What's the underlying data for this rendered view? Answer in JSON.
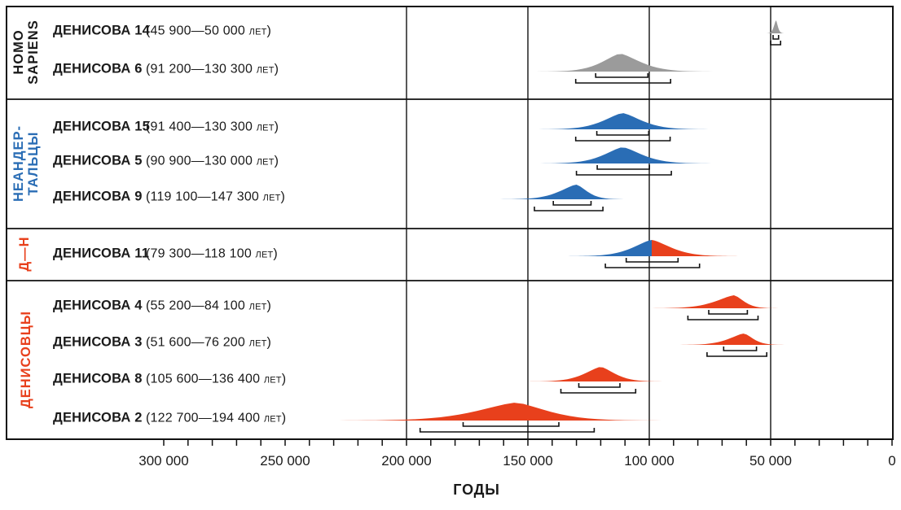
{
  "figure": {
    "xlabel": "ГОДЫ"
  },
  "colors": {
    "sapiens_gray": "#9b9b9b",
    "neanderthal_blue": "#2a6db5",
    "denisovan_red": "#e8401c",
    "line_black": "#111111",
    "text": "#1a1a1a"
  },
  "chart_data": {
    "type": "area",
    "title": "",
    "xlabel": "ГОДЫ",
    "x_axis": {
      "unit": "лет",
      "direction": "values decrease to the right",
      "xlim": [
        330000,
        0
      ],
      "tick_values": [
        300000,
        250000,
        200000,
        150000,
        100000,
        50000,
        0
      ],
      "tick_labels": [
        "300 000",
        "250 000",
        "200 000",
        "150 000",
        "100 000",
        "50 000",
        "0"
      ],
      "minor_tick_step": 10000,
      "gridlines_at": [
        200000,
        150000,
        100000,
        50000
      ],
      "grid": "on"
    },
    "groups": [
      {
        "label": "HOMO\nSAPIENS",
        "label_color": "#1a1a1a",
        "rows": [
          {
            "name": "ДЕНИСОВА 14",
            "range_label": "(45 900—50 000 лет)",
            "interval_years": [
              45900,
              50000
            ],
            "peak_years": 47800,
            "color": "#9b9b9b"
          },
          {
            "name": "ДЕНИСОВА 6",
            "range_label": "(91 200—130 300 лет)",
            "interval_years": [
              91200,
              130300
            ],
            "peak_years": 112000,
            "color": "#9b9b9b"
          }
        ]
      },
      {
        "label": "НЕАНДЕР-\nТАЛЬЦЫ",
        "label_color": "#2a6db5",
        "rows": [
          {
            "name": "ДЕНИСОВА 15",
            "range_label": "(91 400—130 300 лет)",
            "interval_years": [
              91400,
              130300
            ],
            "peak_years": 111000,
            "color": "#2a6db5"
          },
          {
            "name": "ДЕНИСОВА 5",
            "range_label": "(90 900—130 000 лет)",
            "interval_years": [
              90900,
              130000
            ],
            "peak_years": 111000,
            "color": "#2a6db5"
          },
          {
            "name": "ДЕНИСОВА 9",
            "range_label": "(119 100—147 300 лет)",
            "interval_years": [
              119100,
              147300
            ],
            "peak_years": 130000,
            "color": "#2a6db5"
          }
        ]
      },
      {
        "label": "Д—Н",
        "label_color": "#e8401c",
        "rows": [
          {
            "name": "ДЕНИСОВА 11",
            "range_label": "(79 300—118 100 лет)",
            "interval_years": [
              79300,
              118100
            ],
            "peak_years": 99000,
            "color": [
              "#2a6db5",
              "#e8401c"
            ]
          }
        ]
      },
      {
        "label": "ДЕНИСОВЦЫ",
        "label_color": "#e8401c",
        "rows": [
          {
            "name": "ДЕНИСОВА 4",
            "range_label": "(55 200—84 100 лет)",
            "interval_years": [
              55200,
              84100
            ],
            "peak_years": 65000,
            "color": "#e8401c"
          },
          {
            "name": "ДЕНИСОВА 3",
            "range_label": "(51 600—76 200 лет)",
            "interval_years": [
              51600,
              76200
            ],
            "peak_years": 61000,
            "color": "#e8401c"
          },
          {
            "name": "ДЕНИСОВА 8",
            "range_label": "(105 600—136 400 лет)",
            "interval_years": [
              105600,
              136400
            ],
            "peak_years": 120000,
            "color": "#e8401c"
          },
          {
            "name": "ДЕНИСОВА 2",
            "range_label": "(122 700—194 400 лет)",
            "interval_years": [
              122700,
              194400
            ],
            "peak_years": 155000,
            "color": "#e8401c"
          }
        ]
      }
    ]
  }
}
